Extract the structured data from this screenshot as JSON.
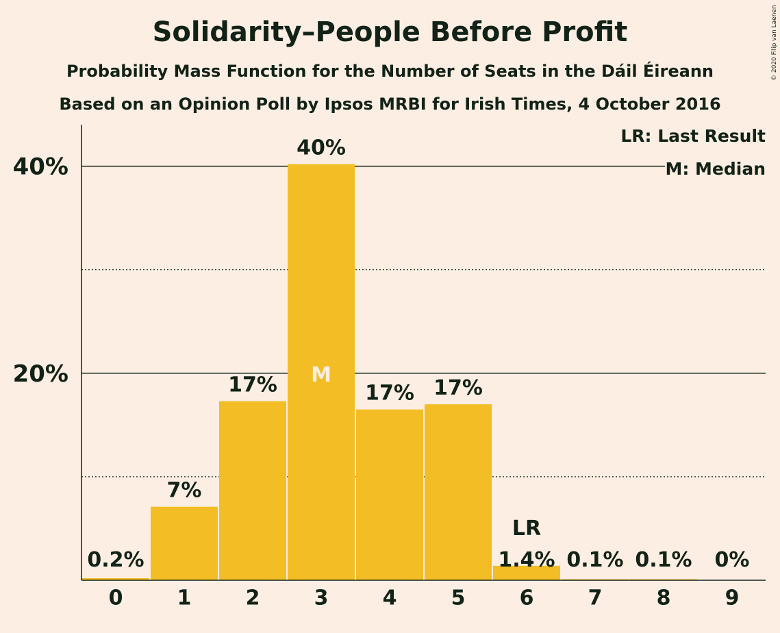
{
  "chart_data": {
    "type": "bar",
    "title": "Solidarity–People Before Profit",
    "subtitle": "Probability Mass Function for the Number of Seats in the Dáil Éireann",
    "subtitle2": "Based on an Opinion Poll by Ipsos MRBI for Irish Times, 4 October 2016",
    "copyright": "© 2020 Filip van Laenen",
    "categories": [
      "0",
      "1",
      "2",
      "3",
      "4",
      "5",
      "6",
      "7",
      "8",
      "9"
    ],
    "values": [
      0.2,
      7.1,
      17.3,
      40.2,
      16.5,
      17.0,
      1.4,
      0.1,
      0.1,
      0.0
    ],
    "value_labels": [
      "0.2%",
      "7%",
      "17%",
      "40%",
      "17%",
      "17%",
      "1.4%",
      "0.1%",
      "0.1%",
      "0%"
    ],
    "yticks": [
      {
        "value": 20,
        "label": "20%"
      },
      {
        "value": 40,
        "label": "40%"
      }
    ],
    "minor_gridlines": [
      10,
      30
    ],
    "ylim": [
      0,
      44
    ],
    "median_index": 3,
    "median_marker": "M",
    "last_result_index": 6,
    "last_result_marker": "LR",
    "legend": [
      "LR: Last Result",
      "M: Median"
    ],
    "legend_position": "top-right",
    "colors": {
      "bar": "#f3bd25",
      "background": "#fdeee3",
      "text": "#122217"
    }
  }
}
